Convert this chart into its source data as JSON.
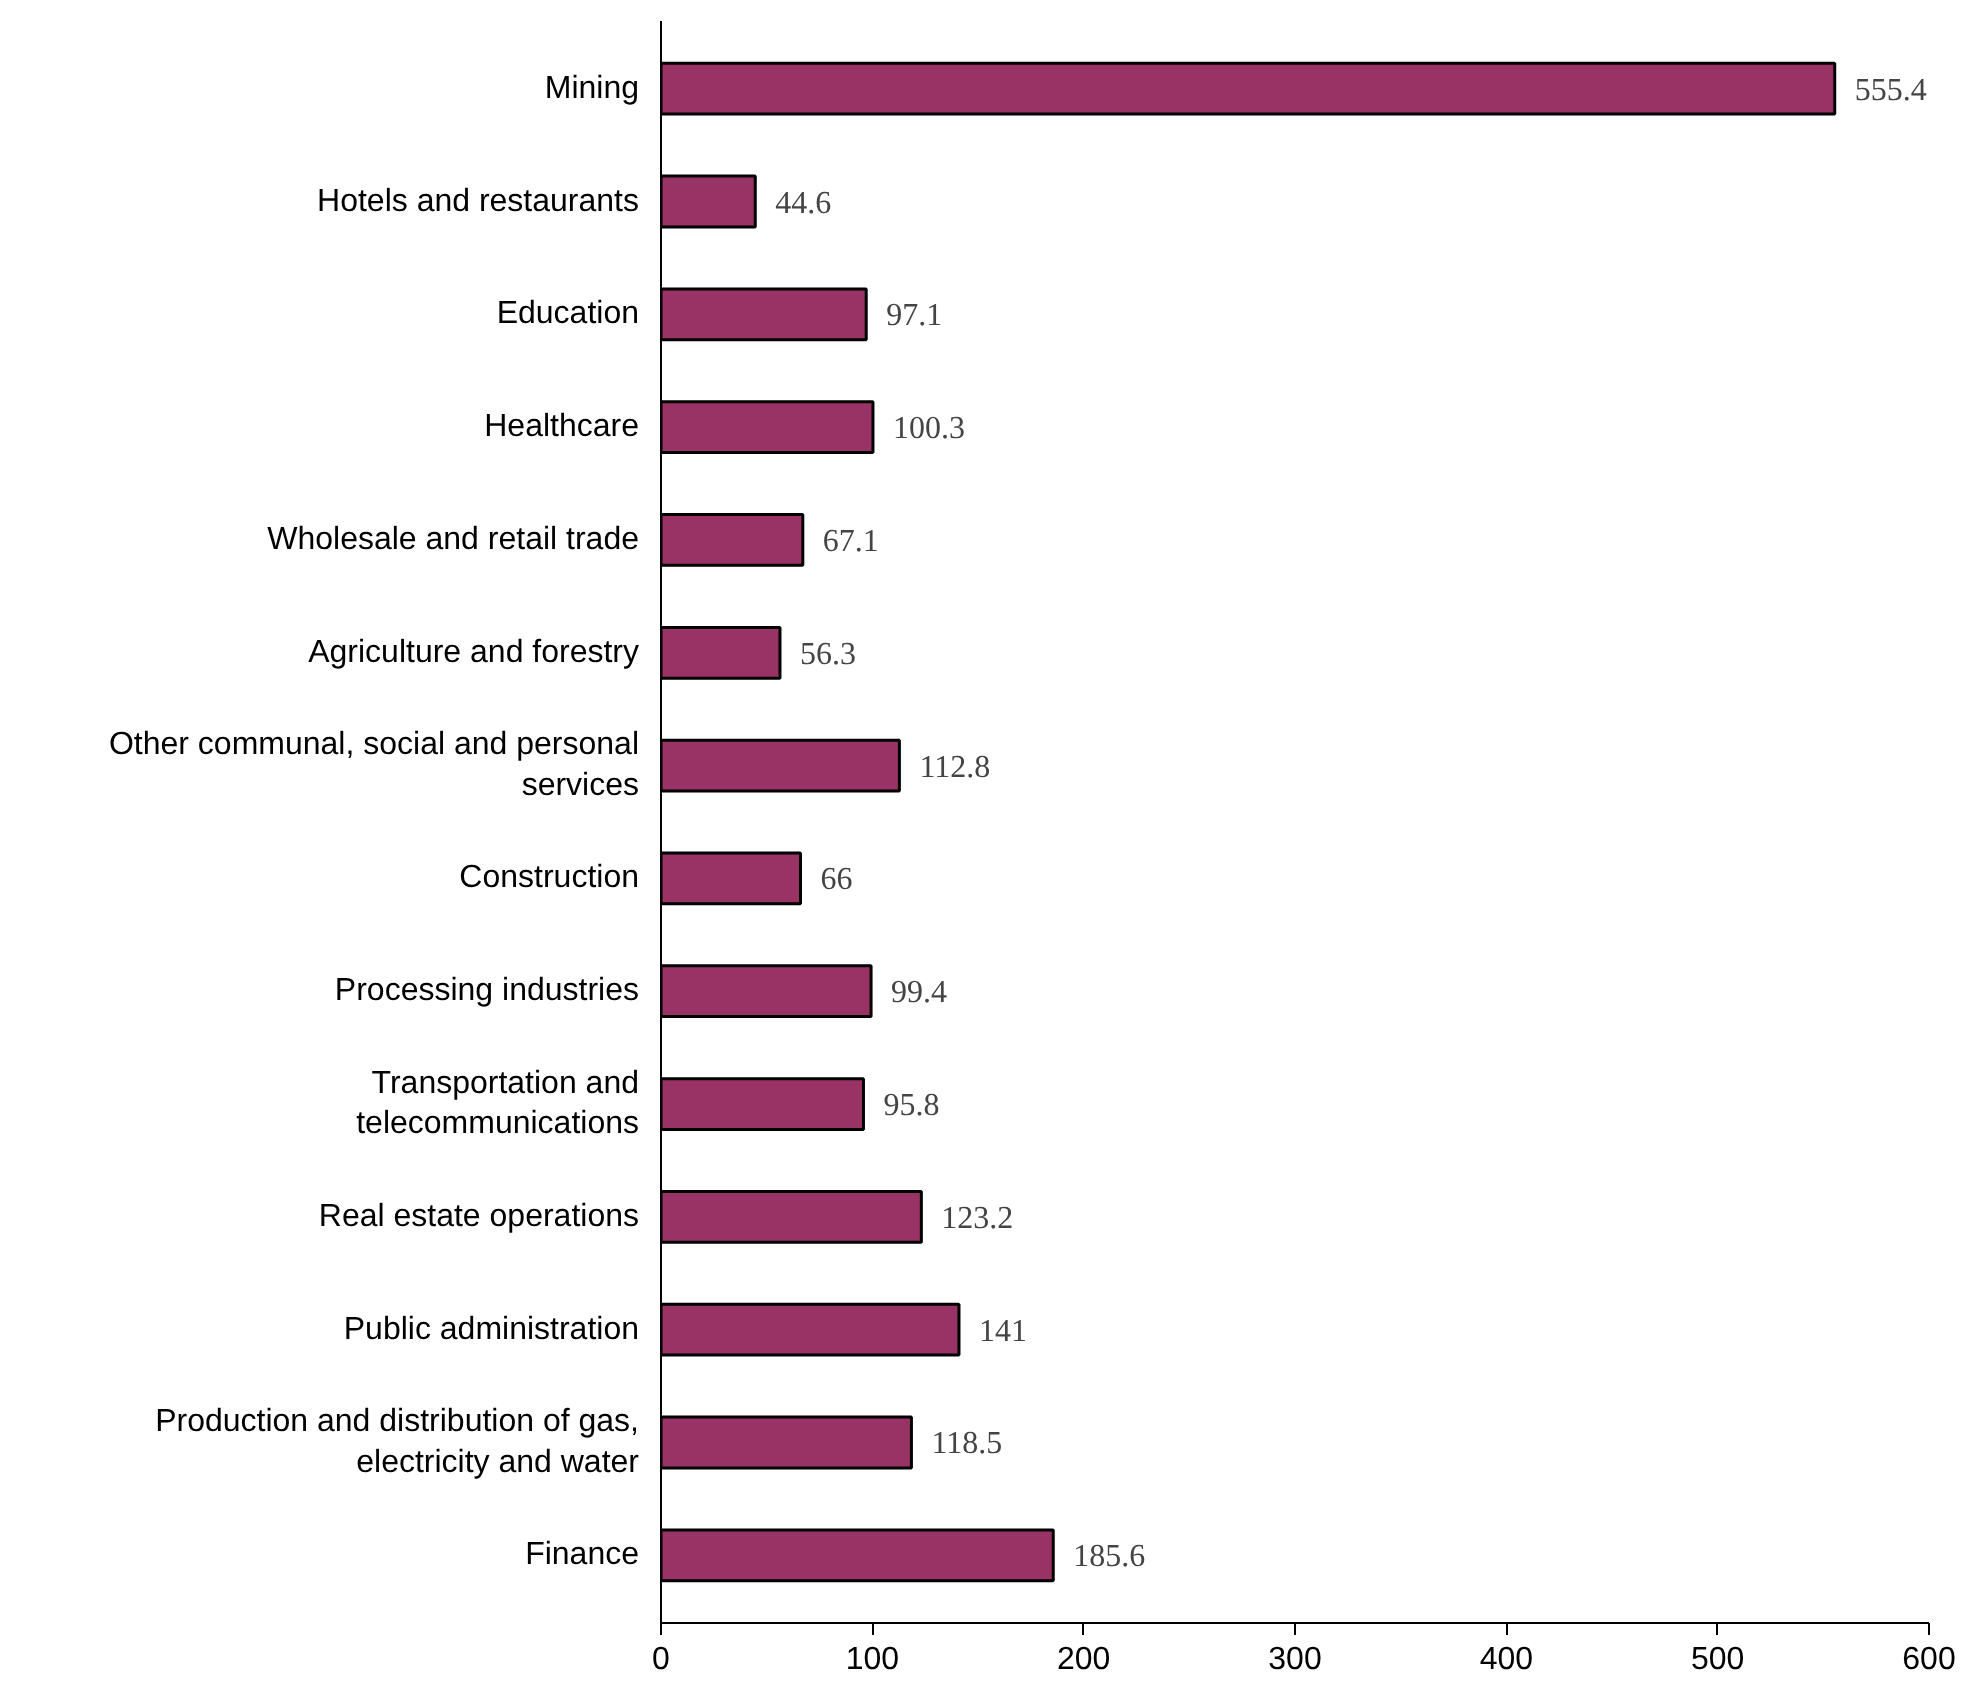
{
  "chart_data": {
    "type": "bar",
    "orientation": "horizontal",
    "categories": [
      "Mining",
      "Hotels and restaurants",
      "Education",
      "Healthcare",
      "Wholesale and retail trade",
      "Agriculture and forestry",
      "Other communal, social and personal services",
      "Construction",
      "Processing industries",
      "Transportation and telecommunications",
      "Real estate operations",
      "Public administration",
      "Production and distribution of gas, electricity and water",
      "Finance"
    ],
    "values": [
      555.4,
      44.6,
      97.1,
      100.3,
      67.1,
      56.3,
      112.8,
      66,
      99.4,
      95.8,
      123.2,
      141,
      118.5,
      185.6
    ],
    "color": "#993366",
    "xlim": [
      0,
      600
    ],
    "xticks": [
      0,
      100,
      200,
      300,
      400,
      500,
      600
    ],
    "grid": false,
    "data_labels": true
  }
}
